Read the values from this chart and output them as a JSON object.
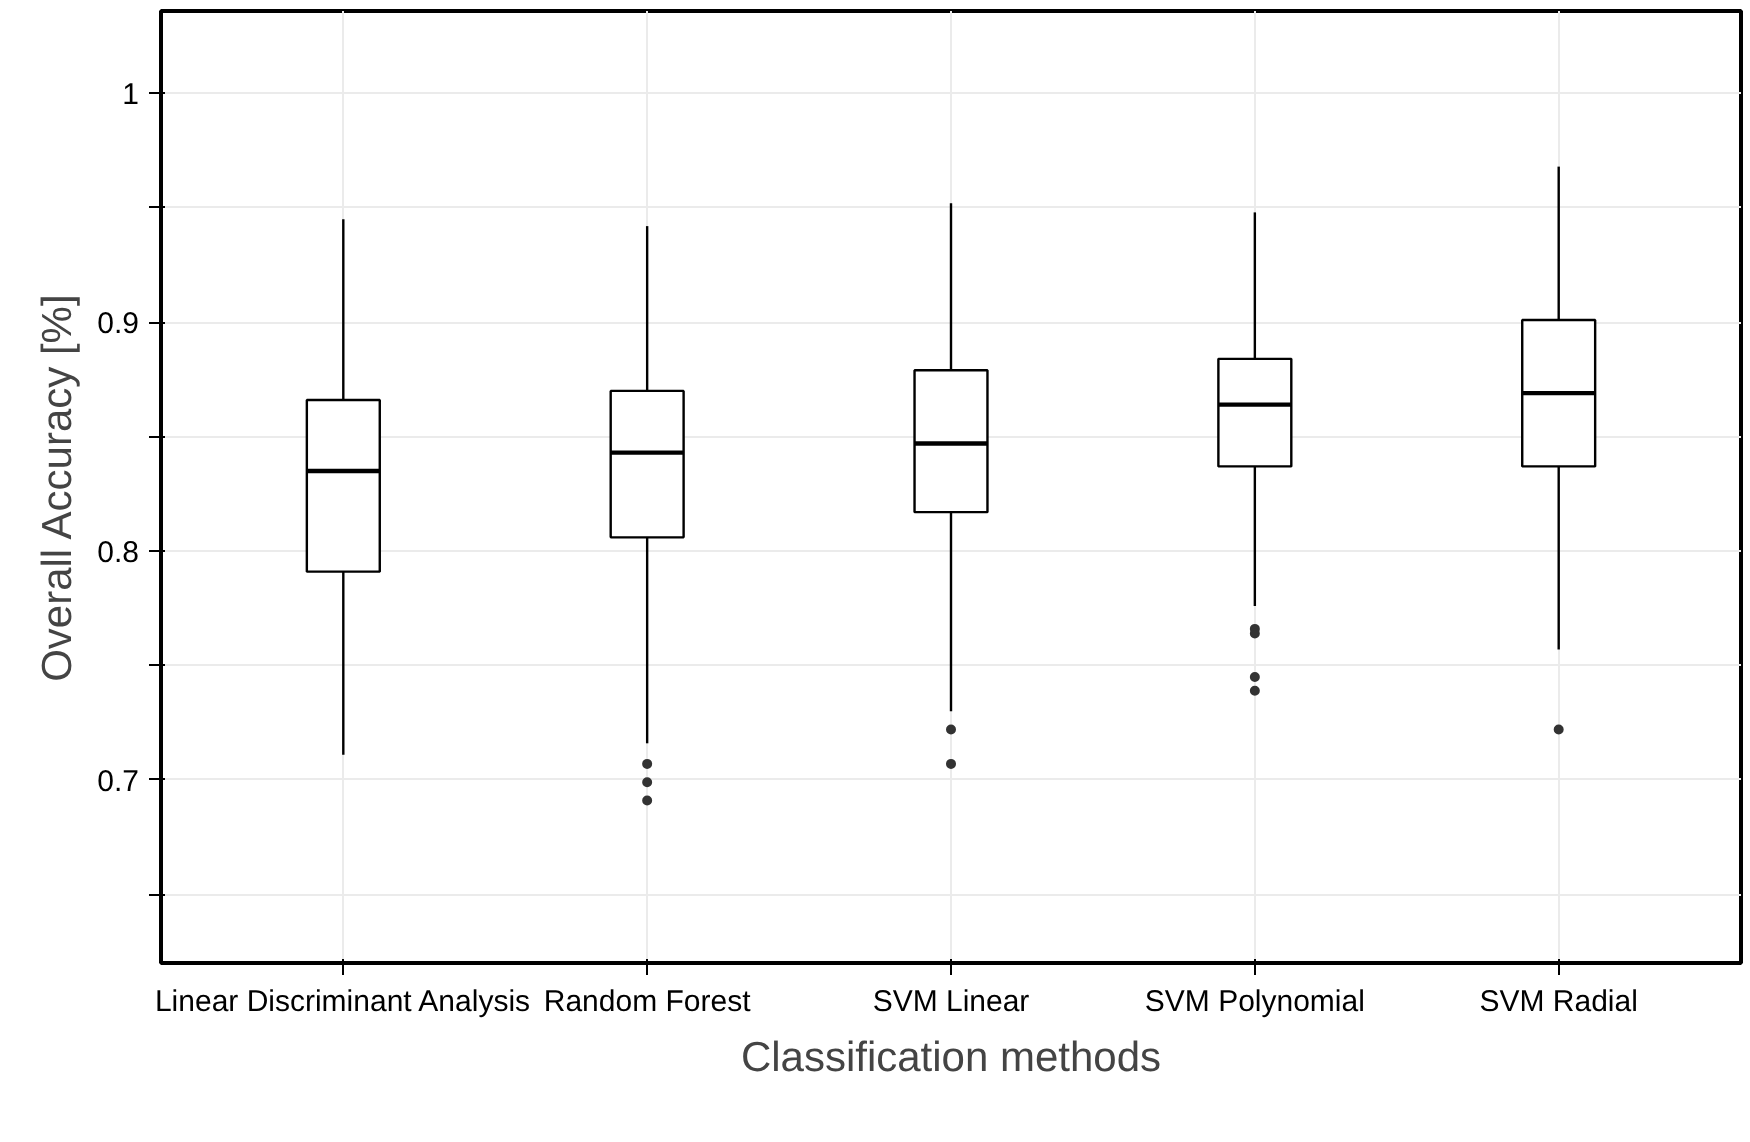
{
  "chart_data": {
    "type": "box",
    "xlabel": "Classification methods",
    "ylabel": "Overall Accuracy [%]",
    "categories": [
      "Linear Discriminant Analysis",
      "Random Forest",
      "SVM Linear",
      "SVM Polynomial",
      "SVM Radial"
    ],
    "boxes": [
      {
        "low": 0.711,
        "q1": 0.791,
        "median": 0.835,
        "q3": 0.866,
        "high": 0.945
      },
      {
        "low": 0.716,
        "q1": 0.806,
        "median": 0.843,
        "q3": 0.87,
        "high": 0.942,
        "outliers": [
          0.707,
          0.699,
          0.691
        ]
      },
      {
        "low": 0.73,
        "q1": 0.817,
        "median": 0.847,
        "q3": 0.879,
        "high": 0.952,
        "outliers": [
          0.722,
          0.707
        ]
      },
      {
        "low": 0.776,
        "q1": 0.837,
        "median": 0.864,
        "q3": 0.884,
        "high": 0.948,
        "outliers": [
          0.766,
          0.764,
          0.745,
          0.739
        ]
      },
      {
        "low": 0.757,
        "q1": 0.837,
        "median": 0.869,
        "q3": 0.901,
        "high": 0.968,
        "outliers": [
          0.722
        ]
      }
    ],
    "color": "#ffffff",
    "ylim": [
      0.62,
      1.036
    ],
    "yticks": [
      {
        "value": 0.65,
        "label": null
      },
      0.7,
      {
        "value": 0.75,
        "label": null
      },
      0.8,
      {
        "value": 0.85,
        "label": null
      },
      0.9,
      {
        "value": 0.95,
        "label": null
      },
      {
        "value": 1,
        "label": "1"
      }
    ],
    "grid": true
  }
}
